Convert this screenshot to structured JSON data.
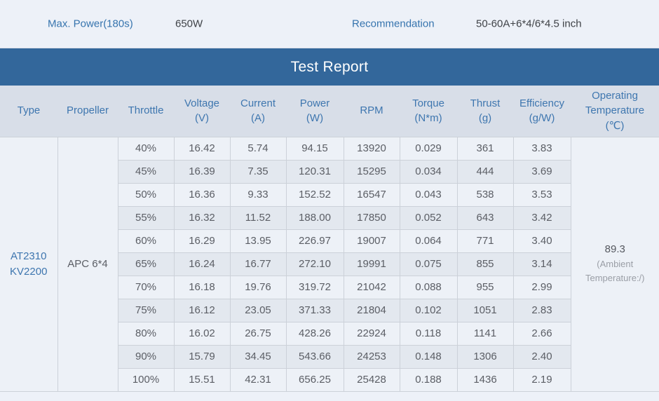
{
  "topbar": {
    "max_power": {
      "label": "Max. Power(180s)",
      "value": "650W"
    },
    "recommendation": {
      "label": "Recommendation",
      "value": "50-60A+6*4/6*4.5 inch"
    }
  },
  "title_bar": {
    "title": "Test Report"
  },
  "table": {
    "headers": [
      {
        "label": "Type"
      },
      {
        "label": "Propeller"
      },
      {
        "label": "Throttle"
      },
      {
        "label": "Voltage",
        "unit": "(V)"
      },
      {
        "label": "Current",
        "unit": "(A)"
      },
      {
        "label": "Power",
        "unit": "(W)"
      },
      {
        "label": "RPM"
      },
      {
        "label": "Torque",
        "unit": "(N*m)"
      },
      {
        "label": "Thrust",
        "unit": "(g)"
      },
      {
        "label": "Efficiency",
        "unit": "(g/W)"
      },
      {
        "label": "Operating Temperature",
        "unit": "(℃)"
      }
    ],
    "type_lines": [
      "AT2310",
      "KV2200"
    ],
    "propeller": "APC 6*4",
    "operating_temperature": {
      "value": "89.3",
      "note": "(Ambient Temperature:/)"
    },
    "rows": [
      {
        "throttle": "40%",
        "voltage": "16.42",
        "current": "5.74",
        "power": "94.15",
        "rpm": "13920",
        "torque": "0.029",
        "thrust": "361",
        "efficiency": "3.83"
      },
      {
        "throttle": "45%",
        "voltage": "16.39",
        "current": "7.35",
        "power": "120.31",
        "rpm": "15295",
        "torque": "0.034",
        "thrust": "444",
        "efficiency": "3.69"
      },
      {
        "throttle": "50%",
        "voltage": "16.36",
        "current": "9.33",
        "power": "152.52",
        "rpm": "16547",
        "torque": "0.043",
        "thrust": "538",
        "efficiency": "3.53"
      },
      {
        "throttle": "55%",
        "voltage": "16.32",
        "current": "11.52",
        "power": "188.00",
        "rpm": "17850",
        "torque": "0.052",
        "thrust": "643",
        "efficiency": "3.42"
      },
      {
        "throttle": "60%",
        "voltage": "16.29",
        "current": "13.95",
        "power": "226.97",
        "rpm": "19007",
        "torque": "0.064",
        "thrust": "771",
        "efficiency": "3.40"
      },
      {
        "throttle": "65%",
        "voltage": "16.24",
        "current": "16.77",
        "power": "272.10",
        "rpm": "19991",
        "torque": "0.075",
        "thrust": "855",
        "efficiency": "3.14"
      },
      {
        "throttle": "70%",
        "voltage": "16.18",
        "current": "19.76",
        "power": "319.72",
        "rpm": "21042",
        "torque": "0.088",
        "thrust": "955",
        "efficiency": "2.99"
      },
      {
        "throttle": "75%",
        "voltage": "16.12",
        "current": "23.05",
        "power": "371.33",
        "rpm": "21804",
        "torque": "0.102",
        "thrust": "1051",
        "efficiency": "2.83"
      },
      {
        "throttle": "80%",
        "voltage": "16.02",
        "current": "26.75",
        "power": "428.26",
        "rpm": "22924",
        "torque": "0.118",
        "thrust": "1141",
        "efficiency": "2.66"
      },
      {
        "throttle": "90%",
        "voltage": "15.79",
        "current": "34.45",
        "power": "543.66",
        "rpm": "24253",
        "torque": "0.148",
        "thrust": "1306",
        "efficiency": "2.40"
      },
      {
        "throttle": "100%",
        "voltage": "15.51",
        "current": "42.31",
        "power": "656.25",
        "rpm": "25428",
        "torque": "0.188",
        "thrust": "1436",
        "efficiency": "2.19"
      }
    ]
  },
  "colors": {
    "title_bar_bg": "#33679b",
    "header_bg": "#d8dee8",
    "accent_blue_text": "#3e76af",
    "row_light_bg": "#edf1f7",
    "row_alt_bg": "#e3e8ef",
    "cell_text": "#5b5e65",
    "page_bg": "#edf1f8"
  }
}
